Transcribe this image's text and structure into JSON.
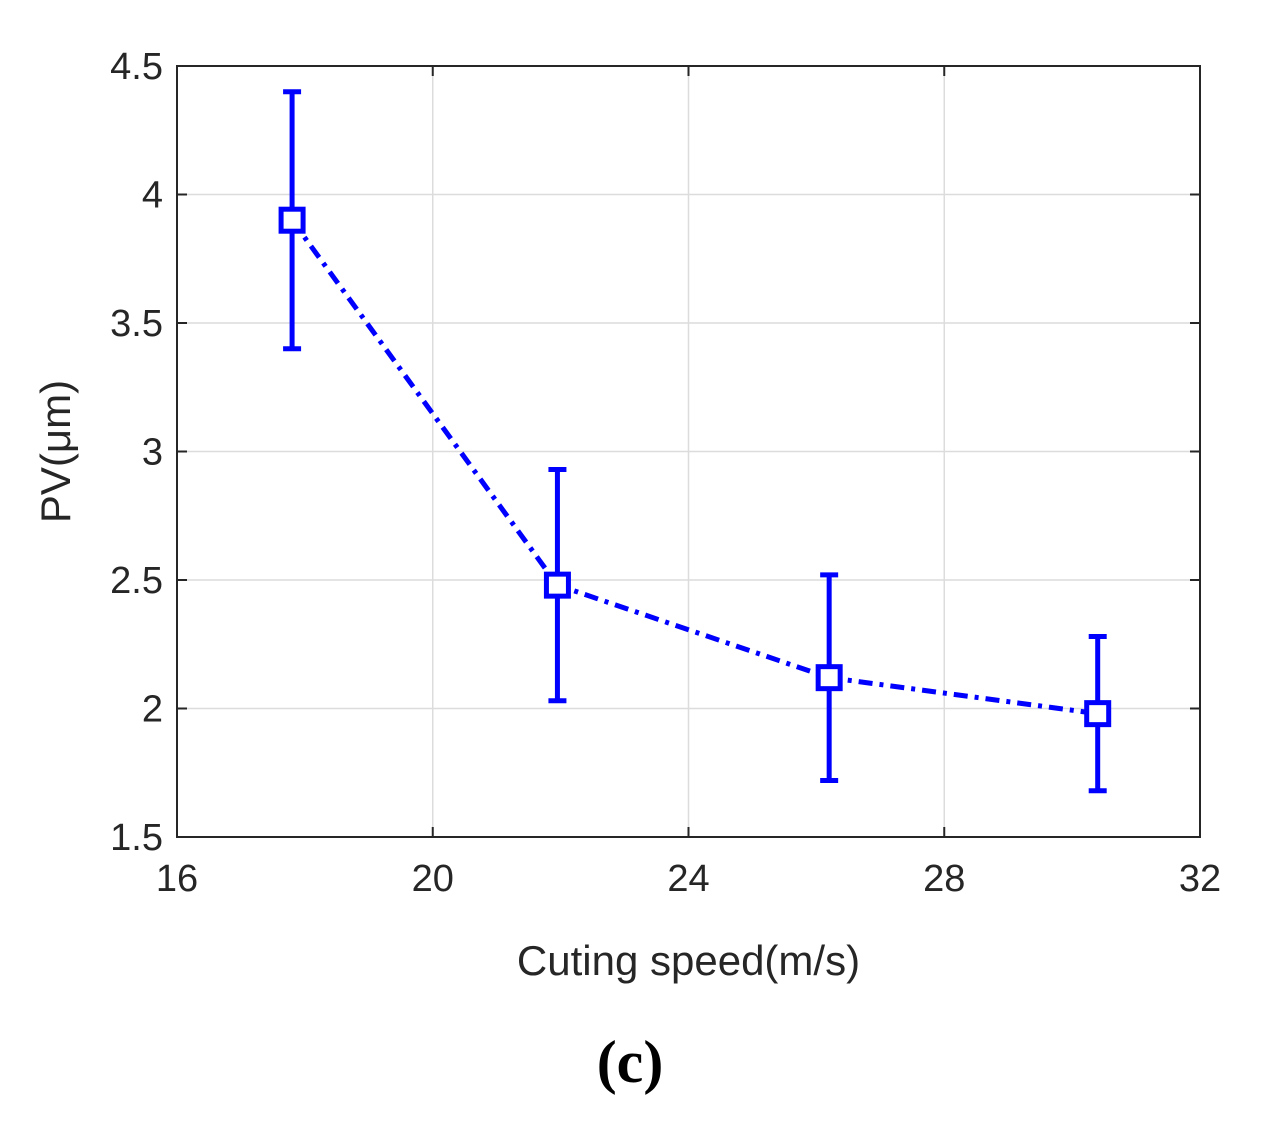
{
  "chart_data": {
    "type": "line",
    "title": "",
    "panel_label": "(c)",
    "xlabel": "Cuting speed(m/s)",
    "ylabel": "PV(μm)",
    "xlim": [
      16,
      32
    ],
    "ylim": [
      1.5,
      4.5
    ],
    "xticks": [
      16,
      20,
      24,
      28,
      32
    ],
    "xtick_labels": [
      "16",
      "20",
      "24",
      "28",
      "32"
    ],
    "yticks": [
      1.5,
      2,
      2.5,
      3,
      3.5,
      4,
      4.5
    ],
    "ytick_labels": [
      "1.5",
      "2",
      "2.5",
      "3",
      "3.5",
      "4",
      "4.5"
    ],
    "grid": true,
    "series": [
      {
        "name": "PV",
        "color": "#0000ff",
        "line_style": "dash-dot",
        "marker": "square",
        "x": [
          17.8,
          21.95,
          26.2,
          30.4
        ],
        "y": [
          3.9,
          2.48,
          2.12,
          1.98
        ],
        "err_lower": [
          3.4,
          2.03,
          1.72,
          1.68
        ],
        "err_upper": [
          4.4,
          2.93,
          2.52,
          2.28
        ]
      }
    ]
  }
}
